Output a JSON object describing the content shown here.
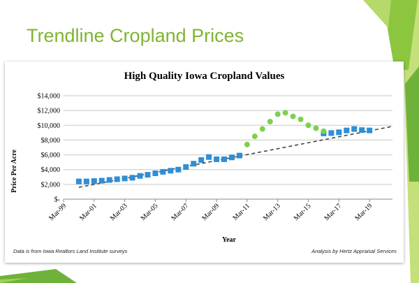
{
  "slide": {
    "title": "Trendline Cropland Prices",
    "accent_color": "#7fb432"
  },
  "chart_data": {
    "type": "scatter",
    "title": "High Quality Iowa Cropland Values",
    "xlabel": "Year",
    "ylabel": "Price Per Acre",
    "x_tick_labels": [
      "Mar-99",
      "Mar-01",
      "Mar-03",
      "Mar-05",
      "Mar-07",
      "Mar-09",
      "Mar-11",
      "Mar-13",
      "Mar-15",
      "Mar-17",
      "Mar-19"
    ],
    "y_tick_labels": [
      "$-",
      "$2,000",
      "$4,000",
      "$6,000",
      "$8,000",
      "$10,000",
      "$12,000",
      "$14,000"
    ],
    "ylim": [
      0,
      14000
    ],
    "grid": true,
    "series": [
      {
        "marker": "square",
        "color": "#2e8fd6",
        "points": [
          [
            "Mar-00",
            2400
          ],
          [
            "Sep-00",
            2400
          ],
          [
            "Mar-01",
            2450
          ],
          [
            "Sep-01",
            2500
          ],
          [
            "Mar-02",
            2600
          ],
          [
            "Sep-02",
            2700
          ],
          [
            "Mar-03",
            2800
          ],
          [
            "Sep-03",
            2900
          ],
          [
            "Mar-04",
            3150
          ],
          [
            "Sep-04",
            3300
          ],
          [
            "Mar-05",
            3500
          ],
          [
            "Sep-05",
            3700
          ],
          [
            "Mar-06",
            3850
          ],
          [
            "Sep-06",
            4000
          ],
          [
            "Mar-07",
            4350
          ],
          [
            "Sep-07",
            4800
          ],
          [
            "Mar-08",
            5300
          ],
          [
            "Sep-08",
            5700
          ],
          [
            "Mar-09",
            5400
          ],
          [
            "Sep-09",
            5400
          ],
          [
            "Mar-10",
            5650
          ],
          [
            "Sep-10",
            5900
          ],
          [
            "Mar-16",
            8900
          ],
          [
            "Sep-16",
            8950
          ],
          [
            "Mar-17",
            9050
          ],
          [
            "Sep-17",
            9300
          ],
          [
            "Mar-18",
            9500
          ],
          [
            "Sep-18",
            9350
          ],
          [
            "Mar-19",
            9300
          ]
        ]
      },
      {
        "marker": "circle",
        "color": "#7fcf4f",
        "points": [
          [
            "Mar-11",
            7400
          ],
          [
            "Sep-11",
            8500
          ],
          [
            "Mar-12",
            9500
          ],
          [
            "Sep-12",
            10500
          ],
          [
            "Mar-13",
            11500
          ],
          [
            "Sep-13",
            11700
          ],
          [
            "Mar-14",
            11200
          ],
          [
            "Sep-14",
            10800
          ],
          [
            "Mar-15",
            10000
          ],
          [
            "Sep-15",
            9600
          ],
          [
            "Mar-16",
            9200
          ]
        ]
      }
    ],
    "trendline": {
      "style": "dashed",
      "color": "#444444",
      "start": [
        "Mar-00",
        1600
      ],
      "end": [
        "Sep-20",
        9850
      ]
    }
  },
  "footnotes": {
    "source": "Data is from Iowa Realtors Land Institute surveys",
    "analysis": "Analysis by Hertz Appraisal Services"
  }
}
